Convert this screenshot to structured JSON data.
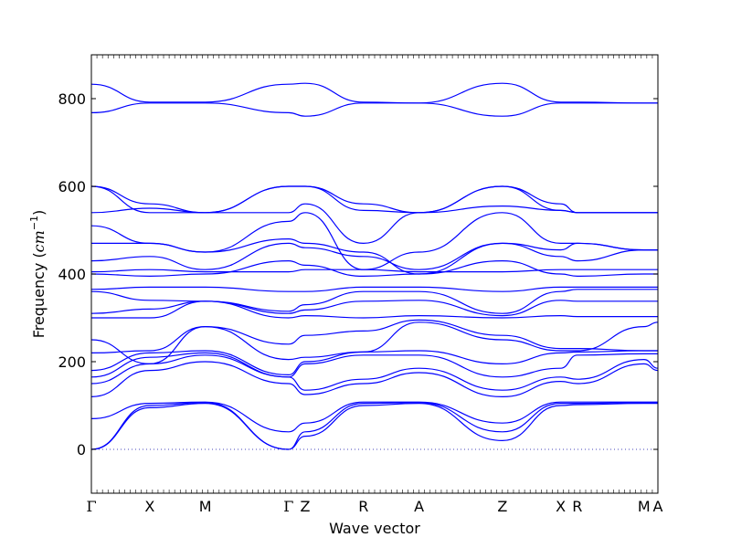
{
  "chart_data": {
    "type": "line",
    "title": "",
    "xlabel": "Wave vector",
    "ylabel_text": "Frequency (",
    "ylabel_unit_base": "cm",
    "ylabel_unit_exp": "−1",
    "ylabel_close": ")",
    "ylim": [
      -100,
      900
    ],
    "yticks": [
      0,
      200,
      400,
      600,
      800
    ],
    "xlim": [
      0,
      10.2
    ],
    "grid": false,
    "line_color": "#0000ff",
    "zero_line_color": "#4444bb",
    "high_symmetry_points": [
      {
        "label": "Γ",
        "x": 0.0
      },
      {
        "label": "X",
        "x": 1.05
      },
      {
        "label": "M",
        "x": 2.05
      },
      {
        "label": "Γ",
        "x": 3.55
      },
      {
        "label": "Z",
        "x": 3.85
      },
      {
        "label": "R",
        "x": 4.9
      },
      {
        "label": "A",
        "x": 5.9
      },
      {
        "label": "Z",
        "x": 7.4
      },
      {
        "label": "X",
        "x": 8.45
      },
      {
        "label": "R",
        "x": 8.75
      },
      {
        "label": "M",
        "x": 9.95
      },
      {
        "label": "A",
        "x": 10.2
      }
    ],
    "minor_tick_step": 0.1,
    "series": [
      {
        "values": [
          [
            0,
            0
          ],
          [
            1.05,
            95
          ],
          [
            2.05,
            105
          ],
          [
            3.55,
            0
          ],
          [
            3.85,
            30
          ],
          [
            4.9,
            100
          ],
          [
            5.9,
            105
          ],
          [
            7.4,
            20
          ],
          [
            8.45,
            100
          ],
          [
            8.75,
            102
          ],
          [
            9.95,
            105
          ],
          [
            10.2,
            105
          ]
        ]
      },
      {
        "values": [
          [
            0,
            0
          ],
          [
            1.05,
            100
          ],
          [
            2.05,
            107
          ],
          [
            3.55,
            0
          ],
          [
            3.85,
            40
          ],
          [
            4.9,
            105
          ],
          [
            5.9,
            107
          ],
          [
            7.4,
            40
          ],
          [
            8.45,
            105
          ],
          [
            8.75,
            105
          ],
          [
            9.95,
            107
          ],
          [
            10.2,
            107
          ]
        ]
      },
      {
        "values": [
          [
            0,
            70
          ],
          [
            1.05,
            105
          ],
          [
            2.05,
            108
          ],
          [
            3.55,
            40
          ],
          [
            3.85,
            60
          ],
          [
            4.9,
            108
          ],
          [
            5.9,
            108
          ],
          [
            7.4,
            60
          ],
          [
            8.45,
            108
          ],
          [
            8.75,
            108
          ],
          [
            9.95,
            108
          ],
          [
            10.2,
            108
          ]
        ]
      },
      {
        "values": [
          [
            0,
            120
          ],
          [
            1.05,
            180
          ],
          [
            2.05,
            200
          ],
          [
            3.55,
            150
          ],
          [
            3.85,
            125
          ],
          [
            4.9,
            150
          ],
          [
            5.9,
            175
          ],
          [
            7.4,
            120
          ],
          [
            8.45,
            155
          ],
          [
            8.75,
            150
          ],
          [
            9.95,
            195
          ],
          [
            10.2,
            180
          ]
        ]
      },
      {
        "values": [
          [
            0,
            150
          ],
          [
            1.05,
            195
          ],
          [
            2.05,
            215
          ],
          [
            3.55,
            165
          ],
          [
            3.85,
            135
          ],
          [
            4.9,
            160
          ],
          [
            5.9,
            185
          ],
          [
            7.4,
            135
          ],
          [
            8.45,
            165
          ],
          [
            8.75,
            160
          ],
          [
            9.95,
            205
          ],
          [
            10.2,
            185
          ]
        ]
      },
      {
        "values": [
          [
            0,
            165
          ],
          [
            1.05,
            210
          ],
          [
            2.05,
            220
          ],
          [
            3.55,
            165
          ],
          [
            3.85,
            195
          ],
          [
            4.9,
            215
          ],
          [
            5.9,
            215
          ],
          [
            7.4,
            165
          ],
          [
            8.45,
            185
          ],
          [
            8.75,
            215
          ],
          [
            9.95,
            218
          ],
          [
            10.2,
            218
          ]
        ]
      },
      {
        "values": [
          [
            0,
            180
          ],
          [
            1.05,
            220
          ],
          [
            2.05,
            225
          ],
          [
            3.55,
            170
          ],
          [
            3.85,
            200
          ],
          [
            4.9,
            222
          ],
          [
            5.9,
            225
          ],
          [
            7.4,
            195
          ],
          [
            8.45,
            220
          ],
          [
            8.75,
            222
          ],
          [
            9.95,
            225
          ],
          [
            10.2,
            225
          ]
        ]
      },
      {
        "values": [
          [
            0,
            220
          ],
          [
            1.05,
            225
          ],
          [
            2.05,
            280
          ],
          [
            3.55,
            205
          ],
          [
            3.85,
            210
          ],
          [
            4.9,
            222
          ],
          [
            5.9,
            290
          ],
          [
            7.4,
            250
          ],
          [
            8.45,
            225
          ],
          [
            8.75,
            225
          ],
          [
            9.95,
            280
          ],
          [
            10.2,
            290
          ]
        ]
      },
      {
        "values": [
          [
            0,
            250
          ],
          [
            1.05,
            195
          ],
          [
            2.05,
            280
          ],
          [
            3.55,
            240
          ],
          [
            3.85,
            260
          ],
          [
            4.9,
            270
          ],
          [
            5.9,
            295
          ],
          [
            7.4,
            260
          ],
          [
            8.45,
            230
          ],
          [
            8.75,
            230
          ],
          [
            9.95,
            225
          ],
          [
            10.2,
            225
          ]
        ]
      },
      {
        "values": [
          [
            0,
            300
          ],
          [
            1.05,
            300
          ],
          [
            2.05,
            338
          ],
          [
            3.55,
            300
          ],
          [
            3.85,
            305
          ],
          [
            4.9,
            300
          ],
          [
            5.9,
            305
          ],
          [
            7.4,
            300
          ],
          [
            8.45,
            305
          ],
          [
            8.75,
            303
          ],
          [
            9.95,
            303
          ],
          [
            10.2,
            303
          ]
        ]
      },
      {
        "values": [
          [
            0,
            310
          ],
          [
            1.05,
            320
          ],
          [
            2.05,
            338
          ],
          [
            3.55,
            310
          ],
          [
            3.85,
            318
          ],
          [
            4.9,
            338
          ],
          [
            5.9,
            340
          ],
          [
            7.4,
            305
          ],
          [
            8.45,
            340
          ],
          [
            8.75,
            338
          ],
          [
            9.95,
            338
          ],
          [
            10.2,
            338
          ]
        ]
      },
      {
        "values": [
          [
            0,
            360
          ],
          [
            1.05,
            340
          ],
          [
            2.05,
            338
          ],
          [
            3.55,
            315
          ],
          [
            3.85,
            330
          ],
          [
            4.9,
            360
          ],
          [
            5.9,
            360
          ],
          [
            7.4,
            310
          ],
          [
            8.45,
            360
          ],
          [
            8.75,
            365
          ],
          [
            9.95,
            365
          ],
          [
            10.2,
            365
          ]
        ]
      },
      {
        "values": [
          [
            0,
            365
          ],
          [
            1.05,
            370
          ],
          [
            2.05,
            370
          ],
          [
            3.55,
            360
          ],
          [
            3.85,
            360
          ],
          [
            4.9,
            370
          ],
          [
            5.9,
            370
          ],
          [
            7.4,
            360
          ],
          [
            8.45,
            370
          ],
          [
            8.75,
            370
          ],
          [
            9.95,
            370
          ],
          [
            10.2,
            370
          ]
        ]
      },
      {
        "values": [
          [
            0,
            400
          ],
          [
            1.05,
            395
          ],
          [
            2.05,
            400
          ],
          [
            3.55,
            430
          ],
          [
            3.85,
            420
          ],
          [
            4.9,
            395
          ],
          [
            5.9,
            400
          ],
          [
            7.4,
            430
          ],
          [
            8.45,
            400
          ],
          [
            8.75,
            395
          ],
          [
            9.95,
            400
          ],
          [
            10.2,
            400
          ]
        ]
      },
      {
        "values": [
          [
            0,
            405
          ],
          [
            1.05,
            410
          ],
          [
            2.05,
            405
          ],
          [
            3.55,
            405
          ],
          [
            3.85,
            410
          ],
          [
            4.9,
            410
          ],
          [
            5.9,
            405
          ],
          [
            7.4,
            405
          ],
          [
            8.45,
            410
          ],
          [
            8.75,
            410
          ],
          [
            9.95,
            410
          ],
          [
            10.2,
            410
          ]
        ]
      },
      {
        "values": [
          [
            0,
            430
          ],
          [
            1.05,
            440
          ],
          [
            2.05,
            410
          ],
          [
            3.55,
            470
          ],
          [
            3.85,
            460
          ],
          [
            4.9,
            440
          ],
          [
            5.9,
            410
          ],
          [
            7.4,
            470
          ],
          [
            8.45,
            440
          ],
          [
            8.75,
            430
          ],
          [
            9.95,
            455
          ],
          [
            10.2,
            455
          ]
        ]
      },
      {
        "values": [
          [
            0,
            470
          ],
          [
            1.05,
            470
          ],
          [
            2.05,
            450
          ],
          [
            3.55,
            480
          ],
          [
            3.85,
            470
          ],
          [
            4.9,
            450
          ],
          [
            5.9,
            400
          ],
          [
            7.4,
            470
          ],
          [
            8.45,
            455
          ],
          [
            8.75,
            470
          ],
          [
            9.95,
            455
          ],
          [
            10.2,
            455
          ]
        ]
      },
      {
        "values": [
          [
            0,
            510
          ],
          [
            1.05,
            470
          ],
          [
            2.05,
            450
          ],
          [
            3.55,
            520
          ],
          [
            3.85,
            540
          ],
          [
            4.9,
            410
          ],
          [
            5.9,
            450
          ],
          [
            7.4,
            540
          ],
          [
            8.45,
            470
          ],
          [
            8.75,
            470
          ],
          [
            9.95,
            455
          ],
          [
            10.2,
            455
          ]
        ]
      },
      {
        "values": [
          [
            0,
            540
          ],
          [
            1.05,
            550
          ],
          [
            2.05,
            540
          ],
          [
            3.55,
            540
          ],
          [
            3.85,
            560
          ],
          [
            4.9,
            470
          ],
          [
            5.9,
            540
          ],
          [
            7.4,
            555
          ],
          [
            8.45,
            545
          ],
          [
            8.75,
            540
          ],
          [
            9.95,
            540
          ],
          [
            10.2,
            540
          ]
        ]
      },
      {
        "values": [
          [
            0,
            600
          ],
          [
            1.05,
            560
          ],
          [
            2.05,
            540
          ],
          [
            3.55,
            600
          ],
          [
            3.85,
            600
          ],
          [
            4.9,
            560
          ],
          [
            5.9,
            540
          ],
          [
            7.4,
            600
          ],
          [
            8.45,
            560
          ],
          [
            8.75,
            540
          ],
          [
            9.95,
            540
          ],
          [
            10.2,
            540
          ]
        ]
      },
      {
        "values": [
          [
            0,
            600
          ],
          [
            1.05,
            540
          ],
          [
            2.05,
            540
          ],
          [
            3.55,
            600
          ],
          [
            3.85,
            600
          ],
          [
            4.9,
            545
          ],
          [
            5.9,
            540
          ],
          [
            7.4,
            600
          ],
          [
            8.45,
            545
          ],
          [
            8.75,
            540
          ],
          [
            9.95,
            540
          ],
          [
            10.2,
            540
          ]
        ]
      },
      {
        "values": [
          [
            0,
            768
          ],
          [
            1.05,
            790
          ],
          [
            2.05,
            790
          ],
          [
            3.55,
            768
          ],
          [
            3.85,
            760
          ],
          [
            4.9,
            790
          ],
          [
            5.9,
            790
          ],
          [
            7.4,
            760
          ],
          [
            8.45,
            790
          ],
          [
            8.75,
            790
          ],
          [
            9.95,
            790
          ],
          [
            10.2,
            790
          ]
        ]
      },
      {
        "values": [
          [
            0,
            833
          ],
          [
            1.05,
            792
          ],
          [
            2.05,
            792
          ],
          [
            3.55,
            833
          ],
          [
            3.85,
            835
          ],
          [
            4.9,
            792
          ],
          [
            5.9,
            790
          ],
          [
            7.4,
            835
          ],
          [
            8.45,
            792
          ],
          [
            8.75,
            792
          ],
          [
            9.95,
            790
          ],
          [
            10.2,
            790
          ]
        ]
      }
    ]
  }
}
